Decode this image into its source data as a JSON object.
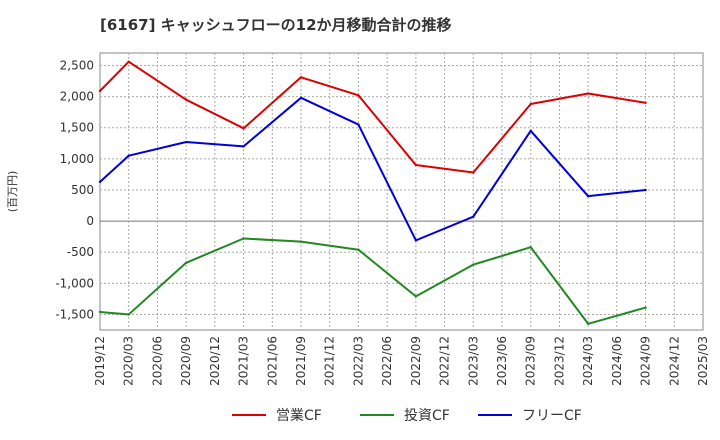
{
  "chart_data": {
    "type": "line",
    "title": "[6167]  キャッシュフローの12か月移動合計の推移",
    "ylabel": "(百万円)",
    "xlabel": "",
    "ylim": [
      -1750,
      2700
    ],
    "yticks": [
      -1500,
      -1000,
      -500,
      0,
      500,
      1000,
      1500,
      2000,
      2500
    ],
    "ytick_labels": [
      "-1,500",
      "-1,000",
      "-500",
      "0",
      "500",
      "1,000",
      "1,500",
      "2,000",
      "2,500"
    ],
    "categories": [
      "2019/12",
      "2020/03",
      "2020/06",
      "2020/09",
      "2020/12",
      "2021/03",
      "2021/06",
      "2021/09",
      "2021/12",
      "2022/03",
      "2022/06",
      "2022/09",
      "2022/12",
      "2023/03",
      "2023/06",
      "2023/09",
      "2023/12",
      "2024/03",
      "2024/06",
      "2024/09",
      "2024/12",
      "2025/03"
    ],
    "grid": true,
    "legend_position": "bottom",
    "series": [
      {
        "name": "営業CF",
        "color": "#dd0000",
        "points": [
          {
            "x": "2019/12",
            "y": 2090
          },
          {
            "x": "2020/03",
            "y": 2560
          },
          {
            "x": "2020/09",
            "y": 1950
          },
          {
            "x": "2021/03",
            "y": 1490
          },
          {
            "x": "2021/09",
            "y": 2310
          },
          {
            "x": "2022/03",
            "y": 2020
          },
          {
            "x": "2022/09",
            "y": 900
          },
          {
            "x": "2023/03",
            "y": 780
          },
          {
            "x": "2023/09",
            "y": 1880
          },
          {
            "x": "2024/03",
            "y": 2050
          },
          {
            "x": "2024/09",
            "y": 1900
          }
        ]
      },
      {
        "name": "投資CF",
        "color": "#228822",
        "points": [
          {
            "x": "2019/12",
            "y": -1460
          },
          {
            "x": "2020/03",
            "y": -1500
          },
          {
            "x": "2020/09",
            "y": -670
          },
          {
            "x": "2021/03",
            "y": -280
          },
          {
            "x": "2021/09",
            "y": -330
          },
          {
            "x": "2022/03",
            "y": -460
          },
          {
            "x": "2022/09",
            "y": -1210
          },
          {
            "x": "2023/03",
            "y": -700
          },
          {
            "x": "2023/09",
            "y": -420
          },
          {
            "x": "2024/03",
            "y": -1650
          },
          {
            "x": "2024/09",
            "y": -1390
          }
        ]
      },
      {
        "name": "フリーCF",
        "color": "#0000dd",
        "points": [
          {
            "x": "2019/12",
            "y": 630
          },
          {
            "x": "2020/03",
            "y": 1050
          },
          {
            "x": "2020/09",
            "y": 1270
          },
          {
            "x": "2021/03",
            "y": 1200
          },
          {
            "x": "2021/09",
            "y": 1980
          },
          {
            "x": "2022/03",
            "y": 1550
          },
          {
            "x": "2022/09",
            "y": -310
          },
          {
            "x": "2023/03",
            "y": 70
          },
          {
            "x": "2023/09",
            "y": 1450
          },
          {
            "x": "2024/03",
            "y": 400
          },
          {
            "x": "2024/09",
            "y": 500
          }
        ]
      }
    ]
  }
}
